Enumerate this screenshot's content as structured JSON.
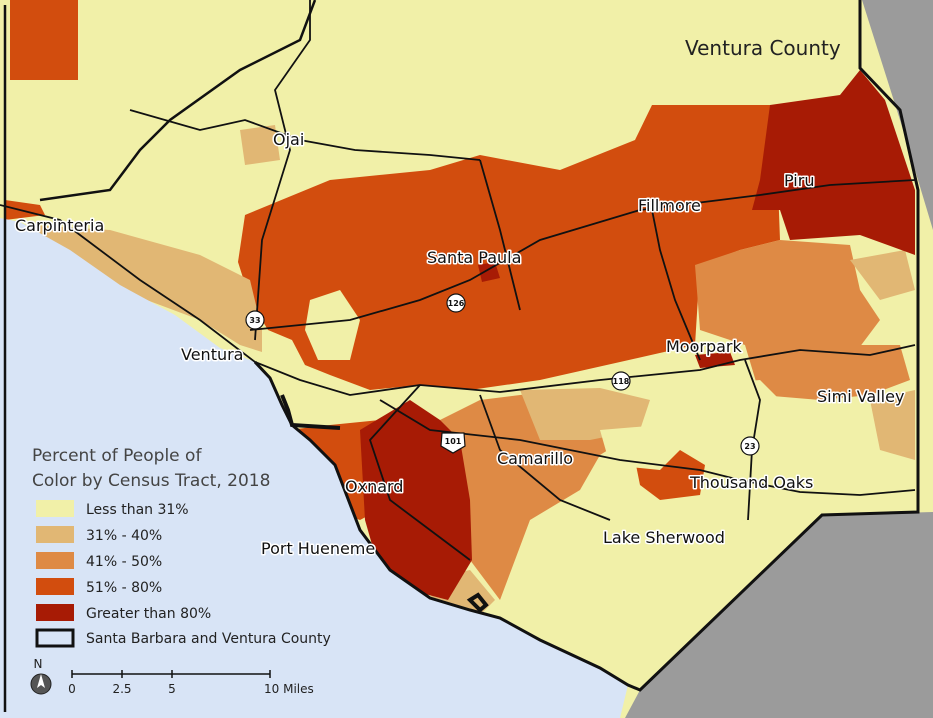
{
  "map": {
    "county_label": "Ventura County",
    "places": [
      {
        "id": "ojai",
        "label": "Ojai"
      },
      {
        "id": "carpinteria",
        "label": "Carpinteria"
      },
      {
        "id": "santa-paula",
        "label": "Santa Paula"
      },
      {
        "id": "fillmore",
        "label": "Fillmore"
      },
      {
        "id": "piru",
        "label": "Piru"
      },
      {
        "id": "ventura",
        "label": "Ventura"
      },
      {
        "id": "moorpark",
        "label": "Moorpark"
      },
      {
        "id": "simi-valley",
        "label": "Simi Valley"
      },
      {
        "id": "camarillo",
        "label": "Camarillo"
      },
      {
        "id": "oxnard",
        "label": "Oxnard"
      },
      {
        "id": "thousand-oaks",
        "label": "Thousand Oaks"
      },
      {
        "id": "port-hueneme",
        "label": "Port Hueneme"
      },
      {
        "id": "lake-sherwood",
        "label": "Lake Sherwood"
      }
    ],
    "route_shields": [
      "33",
      "126",
      "118",
      "101",
      "23"
    ]
  },
  "legend": {
    "title_line1": "Percent of People of",
    "title_line2": "Color by Census Tract, 2018",
    "items": [
      {
        "label": "Less than 31%",
        "color": "#f1f0a8"
      },
      {
        "label": "31% - 40%",
        "color": "#e1b774"
      },
      {
        "label": "41% - 50%",
        "color": "#de8a45"
      },
      {
        "label": "51% - 80%",
        "color": "#d24d0e"
      },
      {
        "label": "Greater than 80%",
        "color": "#a71b05"
      }
    ],
    "boundary_label": "Santa Barbara and Ventura County"
  },
  "scale": {
    "north": "N",
    "ticks": [
      "0",
      "2.5",
      "5",
      "10 Miles"
    ]
  },
  "colors": {
    "ocean": "#d8e4f6",
    "outside": "#9b9b9b"
  }
}
